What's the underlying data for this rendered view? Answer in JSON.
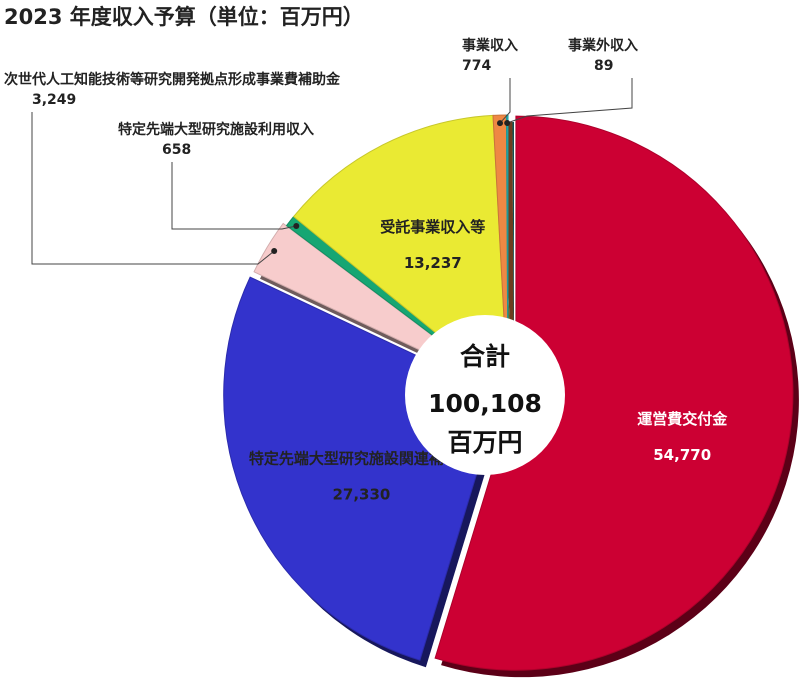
{
  "chart_data": {
    "type": "pie",
    "title": "2023 年度収入予算（単位：百万円）",
    "center": {
      "line1": "合計",
      "line2": "100,108",
      "line3": "百万円"
    },
    "slices": [
      {
        "label": "運営費交付金",
        "value": 54770,
        "value_text": "54,770",
        "color": "#cc0033"
      },
      {
        "label": "特定先端大型研究施設関連補助金",
        "value": 27330,
        "value_text": "27,330",
        "color": "#3333cc"
      },
      {
        "label": "次世代人工知能技術等研究開発拠点形成事業費補助金",
        "value": 3249,
        "value_text": "3,249",
        "color": "#f7cccc"
      },
      {
        "label": "特定先端大型研究施設利用収入",
        "value": 658,
        "value_text": "658",
        "color": "#16a673"
      },
      {
        "label": "受託事業収入等",
        "value": 13237,
        "value_text": "13,237",
        "color": "#eaea33"
      },
      {
        "label": "事業収入",
        "value": 774,
        "value_text": "774",
        "color": "#ee8844"
      },
      {
        "label": "事業外収入",
        "value": 89,
        "value_text": "89",
        "color": "#22b3b3"
      }
    ]
  }
}
